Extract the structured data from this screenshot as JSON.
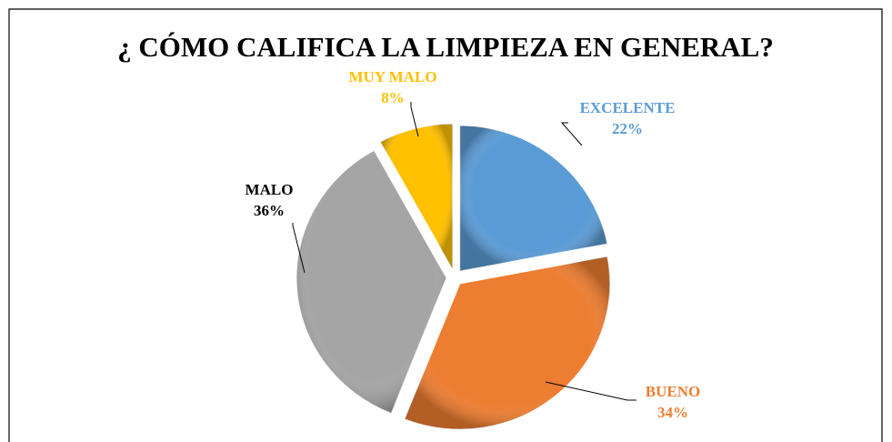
{
  "chart_data": {
    "type": "pie",
    "title": "¿ CÓMO CALIFICA LA LIMPIEZA EN GENERAL?",
    "categories": [
      "EXCELENTE",
      "BUENO",
      "MALO",
      "MUY MALO"
    ],
    "values": [
      22,
      34,
      36,
      8
    ],
    "value_labels": [
      "22%",
      "34%",
      "36%",
      "8%"
    ],
    "colors": [
      "#5b9bd5",
      "#ed7d31",
      "#a5a5a5",
      "#ffc000"
    ],
    "label_colors": [
      "#5b9bd5",
      "#ed7d31",
      "#000000",
      "#ffc000"
    ]
  }
}
